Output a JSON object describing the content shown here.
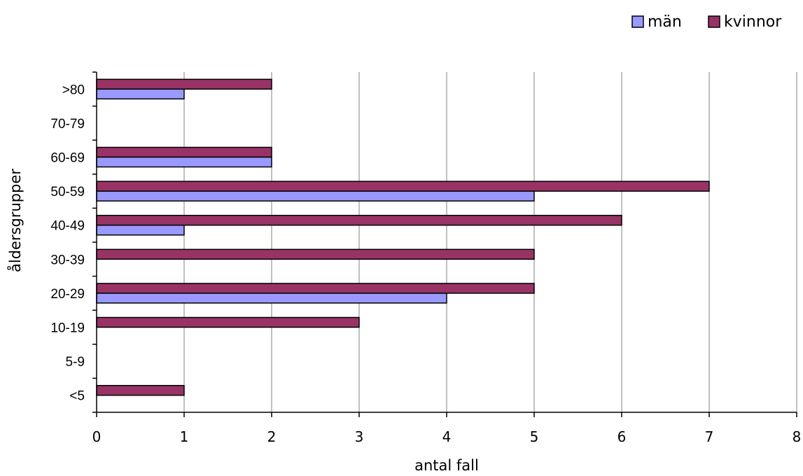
{
  "chart_data": {
    "type": "bar",
    "orientation": "horizontal",
    "categories": [
      "<5",
      "5-9",
      "10-19",
      "20-29",
      "30-39",
      "40-49",
      "50-59",
      "60-69",
      "70-79",
      ">80"
    ],
    "series": [
      {
        "name": "män",
        "color": "#9999ff",
        "values": [
          0,
          0,
          0,
          4,
          0,
          1,
          5,
          2,
          0,
          1
        ]
      },
      {
        "name": "kvinnor",
        "color": "#993366",
        "values": [
          1,
          0,
          3,
          5,
          5,
          6,
          7,
          2,
          0,
          2
        ]
      }
    ],
    "xlabel": "antal fall",
    "ylabel": "åldersgrupper",
    "xlim": [
      0,
      8
    ],
    "x_ticks": [
      "0",
      "1",
      "2",
      "3",
      "4",
      "5",
      "6",
      "7",
      "8"
    ],
    "grid": "vertical",
    "legend_position": "top-right"
  }
}
